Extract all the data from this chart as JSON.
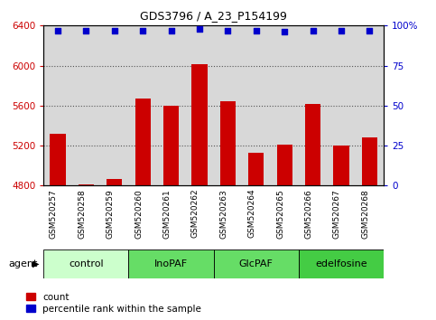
{
  "title": "GDS3796 / A_23_P154199",
  "samples": [
    "GSM520257",
    "GSM520258",
    "GSM520259",
    "GSM520260",
    "GSM520261",
    "GSM520262",
    "GSM520263",
    "GSM520264",
    "GSM520265",
    "GSM520266",
    "GSM520267",
    "GSM520268"
  ],
  "counts": [
    5320,
    4812,
    4870,
    5670,
    5600,
    6010,
    5640,
    5130,
    5210,
    5620,
    5200,
    5280
  ],
  "percentiles": [
    97,
    97,
    97,
    97,
    97,
    98,
    97,
    97,
    96,
    97,
    97,
    97
  ],
  "ylim_left": [
    4800,
    6400
  ],
  "ylim_right": [
    0,
    100
  ],
  "yticks_left": [
    4800,
    5200,
    5600,
    6000,
    6400
  ],
  "yticks_right": [
    0,
    25,
    50,
    75,
    100
  ],
  "bar_color": "#cc0000",
  "dot_color": "#0000cc",
  "groups": [
    {
      "label": "control",
      "start": 0,
      "end": 3,
      "color": "#ccffcc"
    },
    {
      "label": "InoPAF",
      "start": 3,
      "end": 6,
      "color": "#66dd66"
    },
    {
      "label": "GlcPAF",
      "start": 6,
      "end": 9,
      "color": "#66dd66"
    },
    {
      "label": "edelfosine",
      "start": 9,
      "end": 12,
      "color": "#44cc44"
    }
  ],
  "agent_label": "agent",
  "legend_count_label": "count",
  "legend_pct_label": "percentile rank within the sample",
  "bar_width": 0.55,
  "background_color": "#d8d8d8",
  "plot_bg": "#ffffff",
  "ylabel_left_color": "#cc0000",
  "ylabel_right_color": "#0000cc",
  "tick_label_color": "#cc0000",
  "right_tick_color": "#0000cc"
}
